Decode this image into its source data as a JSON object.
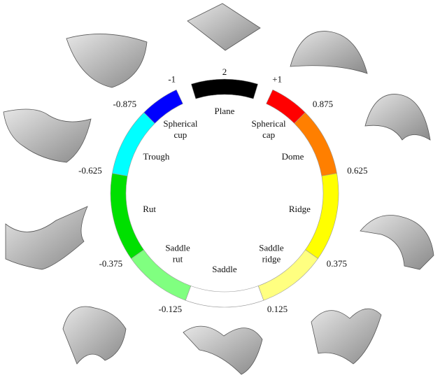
{
  "segments": [
    {
      "label": [
        "Plane"
      ],
      "color": "#000000"
    },
    {
      "label": [
        "Spherical",
        "cap"
      ],
      "color": "#ff0000"
    },
    {
      "label": [
        "Dome"
      ],
      "color": "#ff7f00"
    },
    {
      "label": [
        "Ridge"
      ],
      "color": "#ffff00"
    },
    {
      "label": [
        "Saddle",
        "ridge"
      ],
      "color": "#ffff80"
    },
    {
      "label": [
        "Saddle"
      ],
      "color": "#ffffff"
    },
    {
      "label": [
        "Saddle",
        "rut"
      ],
      "color": "#80ff80"
    },
    {
      "label": [
        "Rut"
      ],
      "color": "#00e000"
    },
    {
      "label": [
        "Trough"
      ],
      "color": "#00ffff"
    },
    {
      "label": [
        "Spherical",
        "cup"
      ],
      "color": "#0000ff"
    }
  ],
  "boundaries": [
    "2",
    "+1",
    "0.875",
    "0.625",
    "0.375",
    "0.125",
    "-0.125",
    "-0.375",
    "-0.625",
    "-0.875",
    "-1"
  ]
}
